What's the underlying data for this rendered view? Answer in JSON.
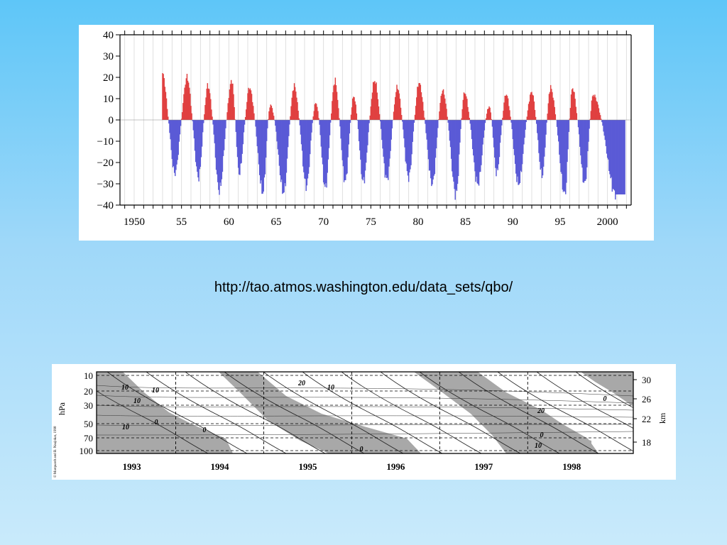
{
  "slide": {
    "source_url": "http://tao.atmos.washington.edu/data_sets/qbo/"
  },
  "colors": {
    "background_top": "#5ec6f8",
    "background_bottom": "#c9eafb",
    "westerly": "#e04040",
    "easterly": "#5a5ad6",
    "contour_shade": "#a8a8a8"
  },
  "chart_data": [
    {
      "type": "bar",
      "x_start": 1953.0,
      "x_end": 2001.9,
      "xlim": [
        1948.5,
        2002.5
      ],
      "ylim": [
        -40,
        40
      ],
      "grid": true,
      "x_ticks": [
        1950,
        1955,
        1960,
        1965,
        1970,
        1975,
        1980,
        1985,
        1990,
        1995,
        2000
      ],
      "x_tick_labels": [
        "1950",
        "55",
        "60",
        "65",
        "70",
        "75",
        "80",
        "85",
        "90",
        "95",
        "2000"
      ],
      "y_ticks": [
        40,
        30,
        20,
        10,
        0,
        -10,
        -20,
        -30,
        -40
      ],
      "y_tick_labels": [
        "40",
        "30",
        "20",
        "10",
        "0",
        "−10",
        "−20",
        "−30",
        "−40"
      ],
      "positive_phase_peaks": [
        {
          "x": 1953.0,
          "value": 22
        },
        {
          "x": 1955.6,
          "value": 21
        },
        {
          "x": 1957.8,
          "value": 18
        },
        {
          "x": 1960.3,
          "value": 20
        },
        {
          "x": 1962.2,
          "value": 17
        },
        {
          "x": 1964.4,
          "value": 9
        },
        {
          "x": 1966.9,
          "value": 18
        },
        {
          "x": 1969.2,
          "value": 10
        },
        {
          "x": 1971.2,
          "value": 20
        },
        {
          "x": 1973.2,
          "value": 13
        },
        {
          "x": 1975.4,
          "value": 20
        },
        {
          "x": 1977.8,
          "value": 17
        },
        {
          "x": 1980.1,
          "value": 19
        },
        {
          "x": 1982.6,
          "value": 16
        },
        {
          "x": 1984.9,
          "value": 15
        },
        {
          "x": 1987.5,
          "value": 8
        },
        {
          "x": 1989.3,
          "value": 14
        },
        {
          "x": 1992.0,
          "value": 15
        },
        {
          "x": 1994.0,
          "value": 17
        },
        {
          "x": 1996.3,
          "value": 17
        },
        {
          "x": 1998.5,
          "value": 14
        }
      ],
      "negative_phase_minima": [
        {
          "x": 1954.3,
          "value": -25
        },
        {
          "x": 1956.8,
          "value": -27
        },
        {
          "x": 1959.0,
          "value": -33
        },
        {
          "x": 1961.1,
          "value": -25
        },
        {
          "x": 1963.6,
          "value": -34
        },
        {
          "x": 1965.8,
          "value": -34
        },
        {
          "x": 1968.2,
          "value": -31
        },
        {
          "x": 1970.2,
          "value": -32
        },
        {
          "x": 1972.3,
          "value": -29
        },
        {
          "x": 1974.2,
          "value": -29
        },
        {
          "x": 1976.7,
          "value": -28
        },
        {
          "x": 1979.0,
          "value": -27
        },
        {
          "x": 1981.5,
          "value": -30
        },
        {
          "x": 1984.0,
          "value": -35
        },
        {
          "x": 1986.3,
          "value": -30
        },
        {
          "x": 1988.3,
          "value": -25
        },
        {
          "x": 1990.6,
          "value": -30
        },
        {
          "x": 1993.1,
          "value": -26
        },
        {
          "x": 1995.5,
          "value": -35
        },
        {
          "x": 1997.6,
          "value": -30
        },
        {
          "x": 2000.9,
          "value": -35
        }
      ]
    },
    {
      "type": "heatmap",
      "xlim": [
        1992.6,
        1998.7
      ],
      "x_ticks": [
        1993,
        1994,
        1995,
        1996,
        1997,
        1998
      ],
      "x_tick_labels": [
        "1993",
        "1994",
        "1995",
        "1996",
        "1997",
        "1998"
      ],
      "year_dividers": [
        1993.5,
        1994.5,
        1995.5,
        1996.5,
        1997.5
      ],
      "y_left_label": "hPa",
      "y_left_ticks": [
        "10",
        "20",
        "30",
        "50",
        "70",
        "100"
      ],
      "y_right_label": "km",
      "y_right_ticks": [
        "30",
        "26",
        "22",
        "18"
      ],
      "contour_labels": [
        "10",
        "10",
        "10",
        "20",
        "10",
        "10",
        "0",
        "0",
        "0",
        "20",
        "10",
        "0",
        "0"
      ],
      "credit": "© Marquardt and B. Naujokat, 1998"
    }
  ]
}
